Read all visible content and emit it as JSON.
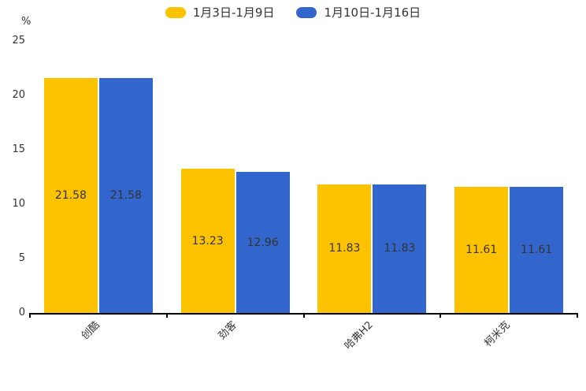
{
  "chart_data": {
    "type": "bar",
    "title": "",
    "unit": "%",
    "categories": [
      "创酷",
      "劲客",
      "哈弗H2",
      "柯米克"
    ],
    "series": [
      {
        "name": "1月3日-1月9日",
        "color": "#FDC301",
        "values": [
          21.58,
          13.23,
          11.83,
          11.61
        ]
      },
      {
        "name": "1月10日-1月16日",
        "color": "#3366CC",
        "values": [
          21.58,
          12.96,
          11.83,
          11.61
        ]
      }
    ],
    "ylim": [
      0,
      25
    ],
    "yticks": [
      0,
      5,
      10,
      15,
      20,
      25
    ],
    "grid": false,
    "legend_position": "top",
    "axis_color": "#000000",
    "value_label_color": "#333333",
    "tick_label_color": "#333333"
  }
}
